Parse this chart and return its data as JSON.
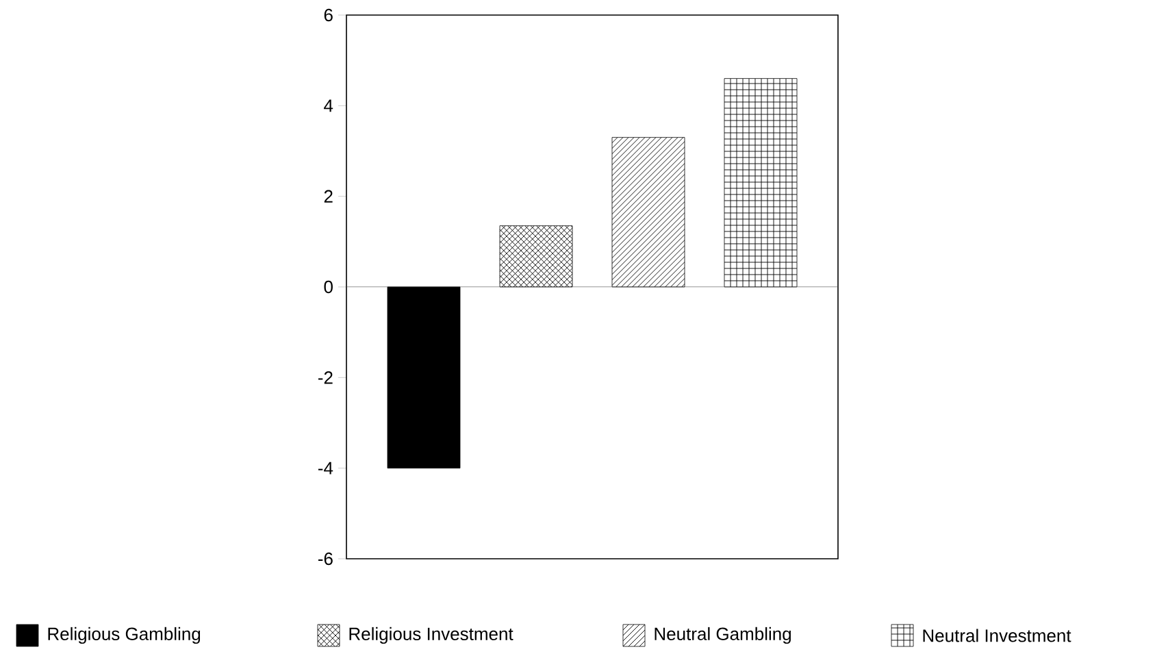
{
  "chart_data": {
    "type": "bar",
    "categories": [
      null
    ],
    "series": [
      {
        "name": "Religious Gambling",
        "color": "#000000",
        "values": [
          -4.0
        ]
      },
      {
        "name": "Religious Investment",
        "color": "#000000",
        "values": [
          1.35
        ]
      },
      {
        "name": "Neutral Gambling",
        "color": "#000000",
        "values": [
          3.3
        ]
      },
      {
        "name": "Neutral Investment",
        "color": "#000000",
        "values": [
          4.6
        ]
      }
    ],
    "ylim": [
      -6,
      6
    ],
    "yticks": [
      -6,
      -4,
      -2,
      0,
      2,
      4,
      6
    ],
    "ref_lines": [
      {
        "axis": "y",
        "value": 0
      }
    ],
    "tick_labels": "y",
    "legend": "bottom"
  }
}
